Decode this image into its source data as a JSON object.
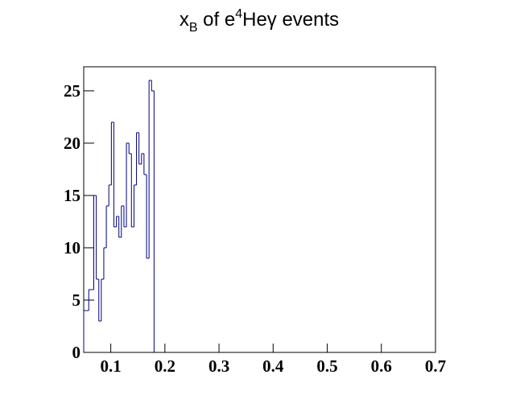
{
  "chart_data": {
    "type": "histogram",
    "title_parts": [
      "x",
      "B",
      " of e",
      "4",
      "Heγ events"
    ],
    "bins": [
      0.05,
      0.0546,
      0.0593,
      0.0639,
      0.0686,
      0.0732,
      0.0779,
      0.0825,
      0.0871,
      0.0918,
      0.0964,
      0.1011,
      0.1057,
      0.1104,
      0.115,
      0.1196,
      0.1243,
      0.1289,
      0.1336,
      0.1382,
      0.1429,
      0.1475,
      0.1521,
      0.1568,
      0.1614,
      0.1661,
      0.1707,
      0.1754,
      0.18
    ],
    "values": [
      4,
      4,
      6,
      6,
      15,
      7,
      3,
      7,
      10,
      14,
      16,
      22,
      12,
      13,
      11,
      14,
      12,
      20,
      19,
      12,
      16,
      21,
      18,
      19,
      17,
      9,
      26,
      25
    ],
    "color": "#000080",
    "xlim": [
      0.05,
      0.7
    ],
    "xticks": [
      0.1,
      0.2,
      0.3,
      0.4,
      0.5,
      0.6,
      0.7
    ],
    "ylim": [
      0,
      27.3
    ],
    "yticks": [
      0,
      5,
      10,
      15,
      20,
      25
    ]
  }
}
